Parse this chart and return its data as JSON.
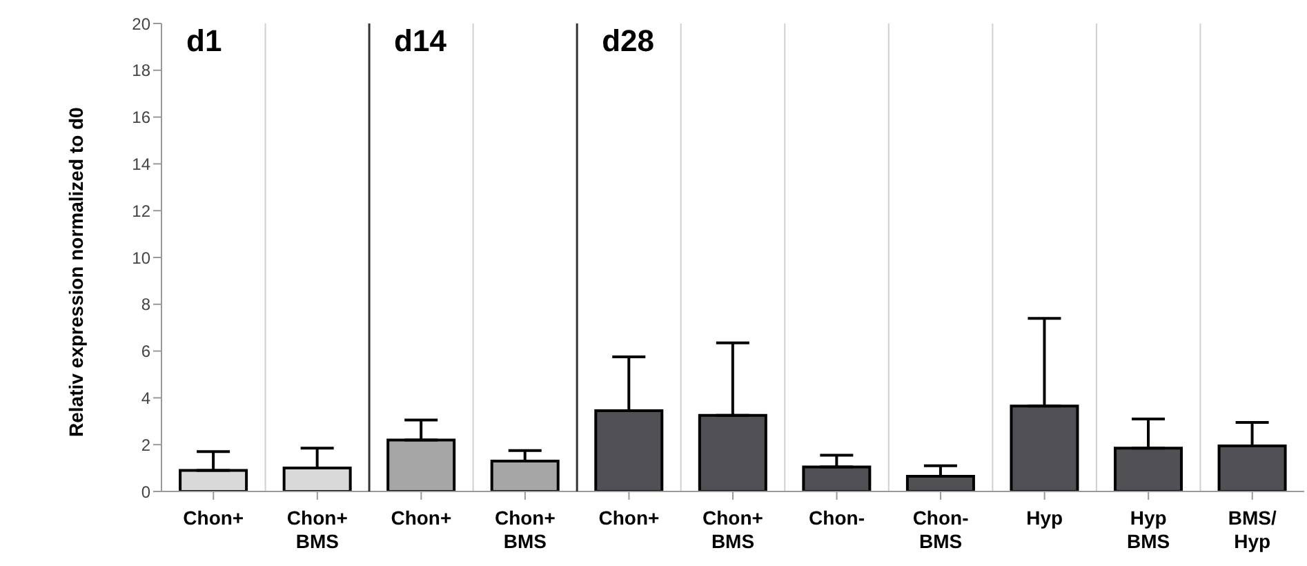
{
  "chart_data": {
    "type": "bar",
    "ylabel": "Relativ expression normalized to d0",
    "categories": [
      "Chon+",
      "Chon+\nBMS",
      "Chon+",
      "Chon+\nBMS",
      "Chon+",
      "Chon+\nBMS",
      "Chon-",
      "Chon-\nBMS",
      "Hyp",
      "Hyp\nBMS",
      "BMS/\nHyp"
    ],
    "values": [
      0.9,
      1.0,
      2.2,
      1.3,
      3.45,
      3.25,
      1.05,
      0.65,
      3.65,
      1.85,
      1.95
    ],
    "errors": [
      [
        0.9,
        1.7
      ],
      [
        1.0,
        1.85
      ],
      [
        2.2,
        3.05
      ],
      [
        1.3,
        1.75
      ],
      [
        3.45,
        5.75
      ],
      [
        3.25,
        6.35
      ],
      [
        1.05,
        1.55
      ],
      [
        0.65,
        1.1
      ],
      [
        3.65,
        7.4
      ],
      [
        1.85,
        3.1
      ],
      [
        1.95,
        2.95
      ]
    ],
    "colors": [
      "#d9d9d9",
      "#d9d9d9",
      "#a6a6a6",
      "#a6a6a6",
      "#505055",
      "#505055",
      "#505055",
      "#505055",
      "#505055",
      "#505055",
      "#505055"
    ],
    "annotations": [
      "d1",
      "d14",
      "d28"
    ],
    "ylim": [
      0,
      20
    ],
    "yticks": [
      0,
      2,
      4,
      6,
      8,
      10,
      12,
      14,
      16,
      18,
      20
    ],
    "grid": "x"
  }
}
